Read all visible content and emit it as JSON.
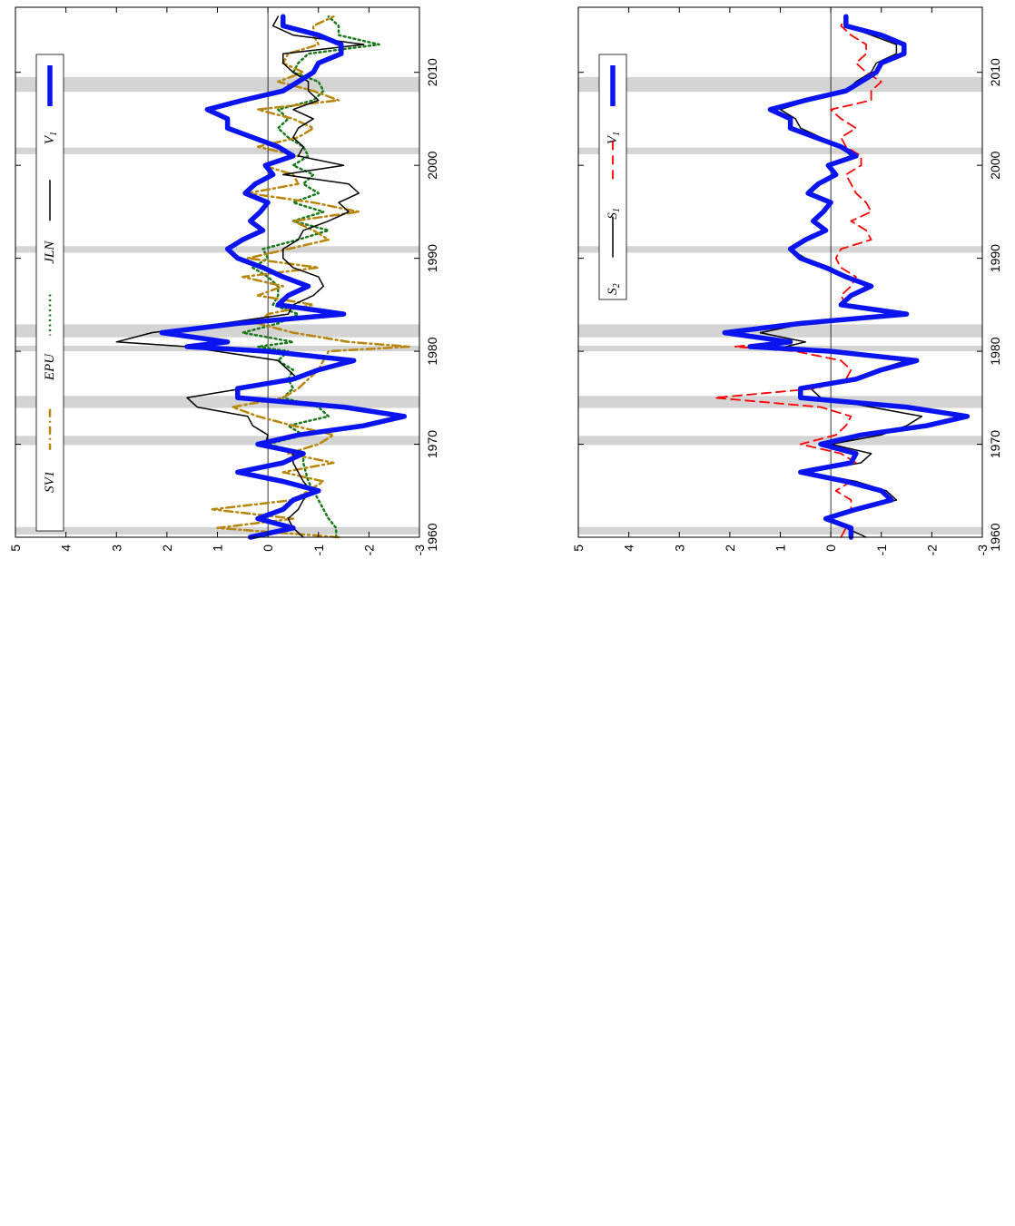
{
  "chart_data": [
    {
      "type": "line",
      "orientation": "rotated-90-clockwise",
      "x_ticks": [
        "1960",
        "1970",
        "1980",
        "1990",
        "2000",
        "2010"
      ],
      "y_ticks": [
        "5",
        "4",
        "3",
        "2",
        "1",
        "0",
        "-1",
        "-2",
        "-3"
      ],
      "xlim": [
        1960,
        2017
      ],
      "ylim": [
        -3,
        5
      ],
      "zero_line": true,
      "legend_position": "top-left",
      "recession_bands": [
        [
          1960.3,
          1961.1
        ],
        [
          1969.9,
          1970.9
        ],
        [
          1973.9,
          1975.2
        ],
        [
          1980.0,
          1980.6
        ],
        [
          1981.5,
          1982.9
        ],
        [
          1990.6,
          1991.3
        ],
        [
          2001.2,
          2001.9
        ],
        [
          2007.9,
          2009.5
        ]
      ],
      "series": [
        {
          "name": "V",
          "subscript": "1",
          "color": "#0a14f0",
          "style": "thick",
          "x": [
            1960.0,
            1961.0,
            1962.0,
            1963.0,
            1964.0,
            1965.0,
            1966.0,
            1967.0,
            1968.0,
            1969.0,
            1970.0,
            1971.0,
            1972.0,
            1973.0,
            1974.0,
            1975.0,
            1976.0,
            1977.0,
            1978.0,
            1979.0,
            1980.0,
            1980.5,
            1981.0,
            1982.0,
            1983.0,
            1984.0,
            1985.0,
            1986.0,
            1987.0,
            1988.0,
            1989.0,
            1990.0,
            1991.0,
            1992.0,
            1993.0,
            1994.0,
            1995.0,
            1996.0,
            1997.0,
            1998.0,
            1999.0,
            2000.0,
            2001.0,
            2002.0,
            2003.0,
            2004.0,
            2005.0,
            2006.0,
            2007.0,
            2008.0,
            2009.0,
            2010.0,
            2011.0,
            2012.0,
            2013.0,
            2014.0,
            2015.0,
            2016.0
          ],
          "y": [
            0.35,
            -0.5,
            0.2,
            -0.3,
            -0.5,
            -1.0,
            -0.3,
            0.6,
            -0.3,
            -0.7,
            0.2,
            -0.6,
            -1.9,
            -2.7,
            -1.5,
            0.6,
            0.6,
            -0.5,
            -1.0,
            -1.7,
            0.0,
            1.6,
            0.8,
            2.1,
            0.6,
            -1.5,
            -0.2,
            -0.4,
            -0.8,
            -0.3,
            0.1,
            0.6,
            0.8,
            0.5,
            0.1,
            0.35,
            0.15,
            0.0,
            0.45,
            0.25,
            -0.1,
            0.05,
            -0.5,
            -0.2,
            0.3,
            0.8,
            0.8,
            1.2,
            0.5,
            -0.3,
            -0.6,
            -0.9,
            -1.0,
            -1.45,
            -1.45,
            -1.0,
            -0.3,
            -0.3
          ]
        },
        {
          "name": "JLN",
          "color": "#000000",
          "style": "solid",
          "x": [
            1960.0,
            1961.0,
            1962.0,
            1963.0,
            1964.0,
            1965.0,
            1966.0,
            1967.0,
            1968.0,
            1969.0,
            1970.0,
            1971.0,
            1972.0,
            1973.0,
            1974.0,
            1975.0,
            1976.0,
            1977.0,
            1978.0,
            1979.0,
            1980.0,
            1980.5,
            1981.0,
            1982.0,
            1983.0,
            1984.0,
            1985.0,
            1986.0,
            1987.0,
            1988.0,
            1989.0,
            1990.0,
            1991.0,
            1992.0,
            1993.0,
            1994.0,
            1995.0,
            1996.0,
            1997.0,
            1998.0,
            1999.0,
            2000.0,
            2001.0,
            2002.0,
            2003.0,
            2004.0,
            2005.0,
            2006.0,
            2007.0,
            2008.0,
            2009.0,
            2010.0,
            2011.0,
            2012.0,
            2013.0,
            2014.0,
            2015.0,
            2016.0
          ],
          "y": [
            -0.7,
            -0.5,
            -0.4,
            -0.6,
            -0.7,
            -0.85,
            -0.7,
            -0.6,
            -0.5,
            -0.5,
            0.05,
            0.0,
            0.3,
            0.4,
            1.4,
            1.6,
            0.5,
            -0.6,
            -0.4,
            -0.2,
            1.0,
            1.6,
            3.0,
            2.3,
            0.9,
            -0.4,
            -0.5,
            -0.9,
            -1.1,
            -1.0,
            -0.5,
            -0.3,
            -0.3,
            -0.6,
            -0.7,
            -1.2,
            -1.6,
            -1.4,
            -1.8,
            -1.6,
            -0.3,
            -1.5,
            -0.6,
            -0.7,
            -0.5,
            -0.6,
            -0.9,
            -0.5,
            -1.0,
            -0.8,
            -0.8,
            -0.5,
            -0.3,
            -0.3,
            -1.9,
            -0.5,
            -0.1,
            -0.2
          ]
        },
        {
          "name": "EPU",
          "color": "#1a7a1a",
          "style": "dotted",
          "x": [
            1960.0,
            1961.0,
            1962.0,
            1963.0,
            1964.0,
            1965.0,
            1966.0,
            1967.0,
            1968.0,
            1969.0,
            1970.0,
            1971.0,
            1972.0,
            1973.0,
            1974.0,
            1975.0,
            1976.0,
            1977.0,
            1978.0,
            1979.0,
            1980.0,
            1980.5,
            1981.0,
            1982.0,
            1983.0,
            1984.0,
            1985.0,
            1986.0,
            1987.0,
            1988.0,
            1989.0,
            1990.0,
            1991.0,
            1992.0,
            1993.0,
            1994.0,
            1995.0,
            1996.0,
            1997.0,
            1998.0,
            1999.0,
            2000.0,
            2001.0,
            2002.0,
            2003.0,
            2004.0,
            2005.0,
            2006.0,
            2007.0,
            2008.0,
            2009.0,
            2010.0,
            2011.0,
            2012.0,
            2013.0,
            2014.0,
            2015.0,
            2016.0
          ],
          "y": [
            -1.35,
            -1.35,
            -1.2,
            -1.1,
            -1.0,
            -0.9,
            -0.8,
            -0.75,
            -0.7,
            -0.7,
            0.0,
            -0.7,
            -0.4,
            -1.2,
            -1.0,
            -0.3,
            -0.5,
            -0.4,
            -0.5,
            -0.2,
            -0.4,
            0.2,
            -0.5,
            0.5,
            -0.2,
            -0.6,
            -0.1,
            -0.2,
            -0.2,
            0.0,
            0.3,
            0.0,
            0.1,
            -0.6,
            -1.2,
            -0.5,
            -1.1,
            -0.5,
            -1.0,
            -0.7,
            -0.9,
            -0.5,
            -0.8,
            -0.7,
            -0.4,
            -0.2,
            -0.4,
            -0.2,
            -0.9,
            -1.1,
            -1.0,
            -0.5,
            -0.6,
            -0.8,
            -2.2,
            -1.4,
            -1.4,
            -1.2
          ]
        },
        {
          "name": "SV1",
          "color": "#b8860b",
          "style": "dash-dot",
          "x": [
            1960.0,
            1961.0,
            1962.0,
            1963.0,
            1964.0,
            1965.0,
            1966.0,
            1967.0,
            1968.0,
            1969.0,
            1970.0,
            1971.0,
            1972.0,
            1973.0,
            1974.0,
            1975.0,
            1976.0,
            1977.0,
            1978.0,
            1979.0,
            1980.0,
            1980.5,
            1981.0,
            1982.0,
            1983.0,
            1984.0,
            1985.0,
            1986.0,
            1987.0,
            1988.0,
            1989.0,
            1990.0,
            1991.0,
            1992.0,
            1993.0,
            1994.0,
            1995.0,
            1996.0,
            1997.0,
            1998.0,
            1999.0,
            2000.0,
            2001.0,
            2002.0,
            2003.0,
            2004.0,
            2005.0,
            2006.0,
            2007.0,
            2008.0,
            2009.0,
            2010.0,
            2011.0,
            2012.0,
            2013.0,
            2014.0,
            2015.0,
            2016.0
          ],
          "y": [
            -1.4,
            1.0,
            -0.5,
            1.1,
            -0.5,
            -0.8,
            -1.1,
            -0.3,
            -1.3,
            -0.4,
            -1.0,
            -1.3,
            -0.5,
            0.2,
            0.7,
            -0.3,
            -0.6,
            -0.8,
            -1.0,
            -1.1,
            -1.2,
            -2.8,
            -1.6,
            -0.5,
            0.2,
            0.0,
            -0.9,
            0.2,
            -0.3,
            0.5,
            -1.0,
            0.4,
            -0.4,
            -1.2,
            -0.9,
            -0.5,
            -1.8,
            -0.9,
            0.4,
            -0.6,
            -0.5,
            0.1,
            -0.6,
            0.2,
            -0.6,
            -0.9,
            -0.5,
            0.2,
            -1.4,
            -0.9,
            -0.2,
            -0.7,
            -0.3,
            -0.4,
            -1.0,
            -0.9,
            -0.9,
            -1.3
          ]
        }
      ]
    },
    {
      "type": "line",
      "orientation": "rotated-90-clockwise",
      "x_ticks": [
        "1960",
        "1970",
        "1980",
        "1990",
        "2000",
        "2010"
      ],
      "y_ticks": [
        "5",
        "4",
        "3",
        "2",
        "1",
        "0",
        "-1",
        "-2",
        "-3"
      ],
      "xlim": [
        1960,
        2017
      ],
      "ylim": [
        -3,
        5
      ],
      "zero_line": true,
      "legend_position": "top-left",
      "recession_bands": [
        [
          1960.3,
          1961.1
        ],
        [
          1969.9,
          1970.9
        ],
        [
          1973.9,
          1975.2
        ],
        [
          1980.0,
          1980.6
        ],
        [
          1981.5,
          1982.9
        ],
        [
          1990.6,
          1991.3
        ],
        [
          2001.2,
          2001.9
        ],
        [
          2007.9,
          2009.5
        ]
      ],
      "series": [
        {
          "name": "V",
          "subscript": "1",
          "color": "#0a14f0",
          "style": "thick",
          "x": [
            1960.0,
            1961.0,
            1962.0,
            1963.0,
            1964.0,
            1965.0,
            1966.0,
            1967.0,
            1968.0,
            1969.0,
            1970.0,
            1971.0,
            1972.0,
            1973.0,
            1974.0,
            1975.0,
            1976.0,
            1977.0,
            1978.0,
            1979.0,
            1980.0,
            1980.5,
            1981.0,
            1982.0,
            1983.0,
            1984.0,
            1985.0,
            1986.0,
            1987.0,
            1988.0,
            1989.0,
            1990.0,
            1991.0,
            1992.0,
            1993.0,
            1994.0,
            1995.0,
            1996.0,
            1997.0,
            1998.0,
            1999.0,
            2000.0,
            2001.0,
            2002.0,
            2003.0,
            2004.0,
            2005.0,
            2006.0,
            2007.0,
            2008.0,
            2009.0,
            2010.0,
            2011.0,
            2012.0,
            2013.0,
            2014.0,
            2015.0,
            2016.0
          ],
          "y": [
            -0.4,
            -0.4,
            0.1,
            -0.5,
            -1.2,
            -1.0,
            -0.3,
            0.6,
            -0.4,
            -0.5,
            0.2,
            -0.6,
            -1.9,
            -2.7,
            -1.5,
            0.6,
            0.6,
            -0.5,
            -1.0,
            -1.7,
            0.0,
            1.6,
            0.8,
            2.1,
            0.6,
            -1.5,
            -0.2,
            -0.4,
            -0.8,
            -0.3,
            0.1,
            0.6,
            0.8,
            0.5,
            0.1,
            0.35,
            0.15,
            0.0,
            0.45,
            0.25,
            -0.1,
            0.05,
            -0.5,
            -0.2,
            0.3,
            0.8,
            0.8,
            1.2,
            0.5,
            -0.3,
            -0.6,
            -0.9,
            -1.0,
            -1.45,
            -1.45,
            -1.0,
            -0.3,
            -0.3
          ]
        },
        {
          "name": "S",
          "subscript": "1",
          "color": "#ff0000",
          "style": "dashed",
          "x": [
            1960.0,
            1961.0,
            1962.0,
            1963.0,
            1964.0,
            1965.0,
            1966.0,
            1967.0,
            1968.0,
            1969.0,
            1970.0,
            1971.0,
            1972.0,
            1973.0,
            1974.0,
            1975.0,
            1976.0,
            1977.0,
            1978.0,
            1979.0,
            1980.0,
            1980.5,
            1981.0,
            1982.0,
            1983.0,
            1984.0,
            1985.0,
            1986.0,
            1987.0,
            1988.0,
            1989.0,
            1990.0,
            1991.0,
            1992.0,
            1993.0,
            1994.0,
            1995.0,
            1996.0,
            1997.0,
            1998.0,
            1999.0,
            2000.0,
            2001.0,
            2002.0,
            2003.0,
            2004.0,
            2005.0,
            2006.0,
            2007.0,
            2008.0,
            2009.0,
            2010.0,
            2011.0,
            2012.0,
            2013.0,
            2014.0,
            2015.0,
            2016.0
          ],
          "y": [
            -0.2,
            -0.3,
            0.0,
            -0.4,
            -0.4,
            -0.1,
            -0.4,
            0.6,
            -0.5,
            -0.2,
            0.6,
            -0.1,
            -0.3,
            -0.4,
            0.2,
            2.3,
            0.3,
            -0.3,
            -0.4,
            -0.2,
            0.7,
            1.9,
            1.0,
            1.9,
            0.6,
            -1.3,
            -0.3,
            -0.2,
            -0.4,
            -0.5,
            -0.2,
            -0.1,
            -0.2,
            -0.8,
            -0.7,
            -0.4,
            -0.8,
            -0.7,
            -0.5,
            -0.4,
            -0.3,
            -0.6,
            -0.6,
            -0.3,
            -0.2,
            -0.5,
            -0.2,
            0.0,
            -0.8,
            -0.8,
            -1.0,
            -0.7,
            -0.5,
            -0.7,
            -0.7,
            -0.4,
            -0.2,
            -0.3
          ]
        },
        {
          "name": "S",
          "subscript": "2",
          "color": "#000000",
          "style": "solid",
          "x": [
            1960.0,
            1961.0,
            1962.0,
            1963.0,
            1964.0,
            1965.0,
            1966.0,
            1967.0,
            1968.0,
            1969.0,
            1970.0,
            1971.0,
            1972.0,
            1973.0,
            1974.0,
            1975.0,
            1976.0,
            1977.0,
            1978.0,
            1979.0,
            1980.0,
            1980.5,
            1981.0,
            1982.0,
            1983.0,
            1984.0,
            1985.0,
            1986.0,
            1987.0,
            1988.0,
            1989.0,
            1990.0,
            1991.0,
            1992.0,
            1993.0,
            1994.0,
            1995.0,
            1996.0,
            1997.0,
            1998.0,
            1999.0,
            2000.0,
            2001.0,
            2002.0,
            2003.0,
            2004.0,
            2005.0,
            2006.0,
            2007.0,
            2008.0,
            2009.0,
            2010.0,
            2011.0,
            2012.0,
            2013.0,
            2014.0,
            2015.0,
            2016.0
          ],
          "y": [
            -0.7,
            -0.3,
            0.0,
            -0.6,
            -1.3,
            -1.1,
            -0.5,
            0.5,
            -0.6,
            -0.8,
            0.0,
            -1.0,
            -1.5,
            -1.8,
            -0.8,
            0.2,
            0.4,
            -0.6,
            -0.9,
            -1.5,
            -0.3,
            0.9,
            0.5,
            1.4,
            0.5,
            -1.4,
            -0.2,
            -0.4,
            -0.7,
            -0.3,
            0.0,
            0.5,
            0.8,
            0.5,
            0.1,
            0.3,
            0.1,
            0.0,
            0.4,
            0.2,
            -0.1,
            0.0,
            -0.4,
            -0.2,
            0.2,
            0.6,
            0.7,
            1.0,
            0.4,
            -0.3,
            -0.5,
            -0.8,
            -0.9,
            -1.3,
            -1.3,
            -0.8,
            -0.3,
            -0.3
          ]
        }
      ]
    }
  ]
}
